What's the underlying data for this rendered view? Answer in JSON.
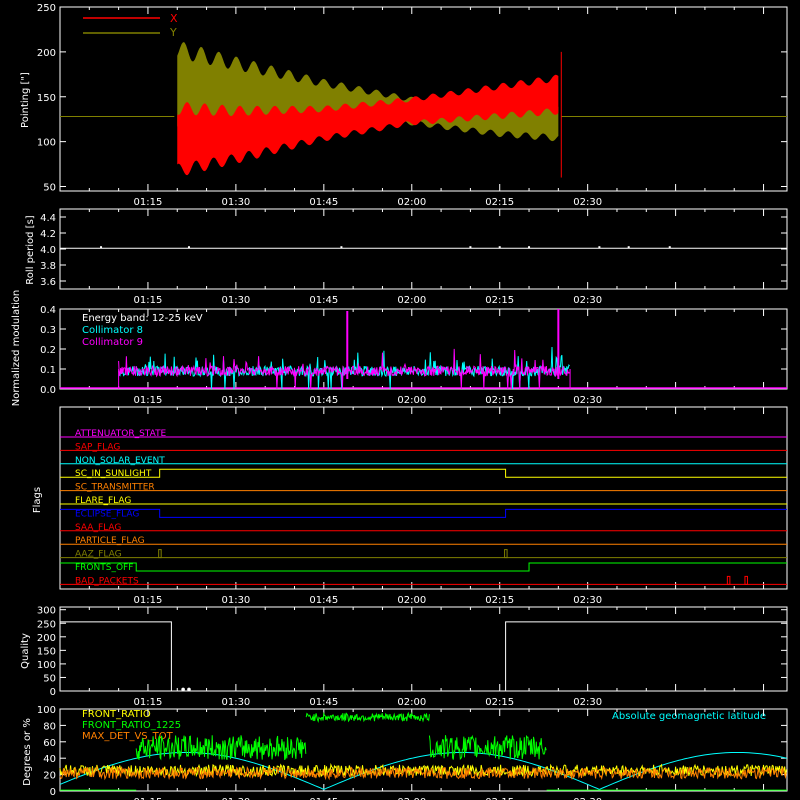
{
  "time_ticks": [
    "01:15",
    "01:30",
    "01:45",
    "02:00",
    "02:15",
    "02:30"
  ],
  "time_domain_min": [
    0,
    124
  ],
  "chart_data": [
    {
      "id": "pointing",
      "type": "line",
      "ylabel": "Pointing [\"]",
      "ylim": [
        45,
        250
      ],
      "yticks": [
        50,
        100,
        150,
        200,
        250
      ],
      "grid": false,
      "legend_placement": "top-left",
      "series": [
        {
          "name": "X",
          "color": "#ff0000",
          "kind": "oscillation",
          "values": [
            {
              "t": 20,
              "lo": 60,
              "hi": 145
            },
            {
              "t": 30,
              "lo": 75,
              "hi": 140
            },
            {
              "t": 45,
              "lo": 100,
              "hi": 140
            },
            {
              "t": 60,
              "lo": 118,
              "hi": 150
            },
            {
              "t": 75,
              "lo": 125,
              "hi": 165
            },
            {
              "t": 85,
              "lo": 130,
              "hi": 175
            }
          ],
          "baseline": 128
        },
        {
          "name": "Y",
          "color": "#808000",
          "kind": "oscillation",
          "values": [
            {
              "t": 20,
              "lo": 100,
              "hi": 213
            },
            {
              "t": 30,
              "lo": 108,
              "hi": 195
            },
            {
              "t": 45,
              "lo": 118,
              "hi": 170
            },
            {
              "t": 60,
              "lo": 118,
              "hi": 150
            },
            {
              "t": 75,
              "lo": 105,
              "hi": 145
            },
            {
              "t": 85,
              "lo": 100,
              "hi": 145
            }
          ],
          "baseline": 128
        }
      ]
    },
    {
      "id": "roll",
      "type": "line",
      "ylabel": "Roll period [s]",
      "ylim": [
        3.5,
        4.5
      ],
      "yticks": [
        3.6,
        3.8,
        4.0,
        4.2,
        4.4
      ],
      "series": [
        {
          "name": "",
          "color": "#ffffff",
          "constant": 4.01
        }
      ]
    },
    {
      "id": "modulation",
      "type": "line",
      "ylabel": "Normalized modulation",
      "ylim": [
        0,
        0.4
      ],
      "yticks": [
        0.0,
        0.1,
        0.2,
        0.3,
        0.4
      ],
      "annotation": "Energy band: 12-25 keV",
      "legend_placement": "top-left",
      "active_range": [
        10,
        87
      ],
      "series": [
        {
          "name": "Collimator 8",
          "color": "#00ffff",
          "typical": 0.09
        },
        {
          "name": "Collimator 9",
          "color": "#ff00ff",
          "typical": 0.09,
          "spikes": [
            {
              "t": 49,
              "v": 0.39
            },
            {
              "t": 85,
              "v": 0.4
            }
          ]
        }
      ],
      "zero_line_color": "#ff00ff"
    },
    {
      "id": "flags",
      "type": "line",
      "ylabel": "Flags",
      "flags": [
        {
          "name": "ATTENUATOR_STATE",
          "color": "#ff00ff",
          "transitions": []
        },
        {
          "name": "SAP_FLAG",
          "color": "#ff0000",
          "transitions": []
        },
        {
          "name": "NON_SOLAR_EVENT",
          "color": "#00ffff",
          "transitions": []
        },
        {
          "name": "SC_IN_SUNLIGHT",
          "color": "#ffff00",
          "transitions": [
            {
              "t": 17,
              "high": true
            },
            {
              "t": 76,
              "high": false
            }
          ]
        },
        {
          "name": "SC_TRANSMITTER",
          "color": "#ff8000",
          "transitions": []
        },
        {
          "name": "FLARE_FLAG",
          "color": "#ffff00",
          "transitions": []
        },
        {
          "name": "ECLIPSE_FLAG",
          "color": "#0000ff",
          "transitions": [
            {
              "t": 17,
              "high": false
            },
            {
              "t": 76,
              "high": true
            }
          ]
        },
        {
          "name": "SAA_FLAG",
          "color": "#ff0000",
          "transitions": []
        },
        {
          "name": "PARTICLE_FLAG",
          "color": "#ff8000",
          "transitions": []
        },
        {
          "name": "AAZ_FLAG",
          "color": "#808000",
          "transitions": [],
          "blips": [
            17,
            76
          ]
        },
        {
          "name": "FRONTS_OFF",
          "color": "#00ff00",
          "transitions": [
            {
              "t": 13,
              "high": false
            },
            {
              "t": 80,
              "high": true
            }
          ]
        },
        {
          "name": "BAD_PACKETS",
          "color": "#ff0000",
          "transitions": [],
          "blips": [
            114,
            117
          ]
        }
      ]
    },
    {
      "id": "quality",
      "type": "line",
      "ylabel": "Quality",
      "ylim": [
        0,
        310
      ],
      "yticks": [
        0,
        50,
        100,
        150,
        200,
        250,
        300
      ],
      "series": [
        {
          "name": "",
          "color": "#ffffff",
          "values": [
            [
              0,
              255
            ],
            [
              19,
              255
            ],
            [
              19,
              0
            ],
            [
              76,
              0
            ],
            [
              76,
              255
            ],
            [
              124,
              255
            ]
          ]
        }
      ]
    },
    {
      "id": "ratios",
      "type": "line",
      "ylabel": "Degrees or %",
      "ylim": [
        0,
        100
      ],
      "yticks": [
        0,
        20,
        40,
        60,
        80,
        100
      ],
      "legend_placement": "top-left",
      "annotation": "Absolute geomagnetic latitude",
      "annotation_color": "#00ffff",
      "series": [
        {
          "name": "FRONT_RATIO",
          "color": "#ffff00",
          "typical": 25
        },
        {
          "name": "FRONT_RATIO_1225",
          "color": "#00ff00",
          "segments": [
            {
              "t0": 13,
              "t1": 42,
              "v": 53
            },
            {
              "t0": 42,
              "t1": 63,
              "v": 90
            },
            {
              "t0": 63,
              "t1": 83,
              "v": 53
            }
          ]
        },
        {
          "name": "MAX_DET_VS_TOT",
          "color": "#ff8000",
          "typical": 22
        },
        {
          "name": "",
          "color": "#00ffff",
          "kind": "latitude"
        }
      ]
    }
  ]
}
